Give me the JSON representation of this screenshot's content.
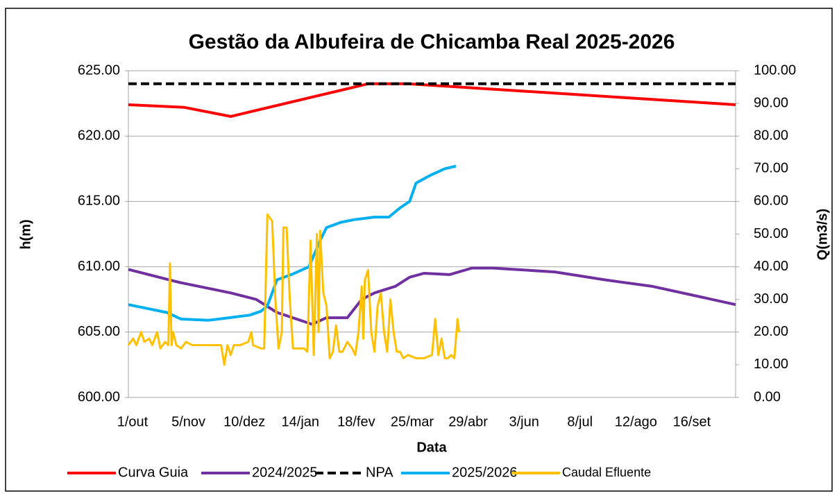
{
  "chart_data": {
    "type": "line",
    "title": "Gestão da Albufeira de Chicamba Real 2025-2026",
    "xlabel": "Data",
    "ylabel": "h(m)",
    "y2label": "Q(m3/s)",
    "xlim": [
      0,
      380
    ],
    "xticks": [
      {
        "value": 0,
        "label": "1/out"
      },
      {
        "value": 35,
        "label": "5/nov"
      },
      {
        "value": 70,
        "label": "10/dez"
      },
      {
        "value": 105,
        "label": "14/jan"
      },
      {
        "value": 140,
        "label": "18/fev"
      },
      {
        "value": 175,
        "label": "25/mar"
      },
      {
        "value": 210,
        "label": "29/abr"
      },
      {
        "value": 245,
        "label": "3/jun"
      },
      {
        "value": 280,
        "label": "8/jul"
      },
      {
        "value": 315,
        "label": "12/ago"
      },
      {
        "value": 350,
        "label": "16/set"
      }
    ],
    "ylim": [
      600,
      625
    ],
    "yticks": [
      {
        "value": 600,
        "label": "600.00"
      },
      {
        "value": 605,
        "label": "605.00"
      },
      {
        "value": 610,
        "label": "610.00"
      },
      {
        "value": 615,
        "label": "615.00"
      },
      {
        "value": 620,
        "label": "620.00"
      },
      {
        "value": 625,
        "label": "625.00"
      }
    ],
    "y2lim": [
      0,
      100
    ],
    "y2ticks": [
      {
        "value": 0,
        "label": "0.00"
      },
      {
        "value": 10,
        "label": "10.00"
      },
      {
        "value": 20,
        "label": "20.00"
      },
      {
        "value": 30,
        "label": "30.00"
      },
      {
        "value": 40,
        "label": "40.00"
      },
      {
        "value": 50,
        "label": "50.00"
      },
      {
        "value": 60,
        "label": "60.00"
      },
      {
        "value": 70,
        "label": "70.00"
      },
      {
        "value": 80,
        "label": "80.00"
      },
      {
        "value": 90,
        "label": "90.00"
      },
      {
        "value": 100,
        "label": "100.00"
      }
    ],
    "grid": true,
    "legend": "bottom",
    "series": [
      {
        "name": "Curva Guia",
        "color": "#ff0000",
        "x": [
          0,
          35,
          64,
          150,
          175,
          380
        ],
        "values": [
          622.4,
          622.2,
          621.5,
          624,
          624,
          622.4
        ]
      },
      {
        "name": "2024/2025",
        "color": "#7030a0",
        "x": [
          0,
          32,
          64,
          80,
          93,
          115,
          124,
          137,
          146,
          154,
          167,
          176,
          185,
          201,
          215,
          228,
          267,
          298,
          328,
          354,
          380
        ],
        "values": [
          609.8,
          608.8,
          608.0,
          607.5,
          606.5,
          605.6,
          606.1,
          606.1,
          607.5,
          608.0,
          608.5,
          609.2,
          609.5,
          609.4,
          609.9,
          609.9,
          609.6,
          609.0,
          608.5,
          607.8,
          607.1
        ]
      },
      {
        "name": "NPA",
        "color": "#000000",
        "dash": true,
        "x": [
          0,
          380
        ],
        "values": [
          624,
          624
        ]
      },
      {
        "name": "2025/2026",
        "color": "#00b0f0",
        "x": [
          0,
          24,
          33,
          50,
          63,
          76,
          83,
          87,
          93,
          102,
          113,
          120,
          124,
          133,
          141,
          154,
          163,
          170,
          176,
          180,
          189,
          198,
          205
        ],
        "values": [
          607.1,
          606.5,
          606.0,
          605.9,
          606.1,
          606.3,
          606.6,
          607.0,
          609.0,
          609.4,
          610.0,
          612.0,
          613.0,
          613.4,
          613.6,
          613.8,
          613.8,
          614.5,
          615.0,
          616.4,
          617.0,
          617.5,
          617.7
        ]
      },
      {
        "name": "Caudal Efluente",
        "color": "#ffc000",
        "axis": "y2",
        "x": [
          0,
          3,
          5,
          8,
          10,
          13,
          15,
          18,
          20,
          23,
          25,
          26,
          27,
          28,
          30,
          33,
          36,
          40,
          45,
          50,
          55,
          58,
          60,
          62,
          64,
          66,
          70,
          75,
          77,
          78,
          83,
          85,
          87,
          90,
          92,
          94,
          96,
          97,
          99,
          101,
          103,
          106,
          110,
          112,
          114,
          116,
          118,
          119,
          120,
          122,
          124,
          126,
          128,
          130,
          132,
          134,
          137,
          140,
          142,
          144,
          146,
          147,
          148,
          150,
          152,
          154,
          156,
          158,
          160,
          162,
          164,
          166,
          168,
          170,
          172,
          175,
          180,
          185,
          190,
          192,
          194,
          196,
          198,
          200,
          202,
          204,
          206,
          207
        ],
        "values": [
          16,
          18,
          16,
          20,
          17,
          18,
          16,
          20,
          15,
          17,
          16,
          41,
          16,
          20,
          16,
          15,
          17,
          16,
          16,
          16,
          16,
          16,
          10,
          16,
          13,
          16,
          16,
          17,
          20,
          16,
          15,
          15,
          56,
          54,
          30,
          15,
          20,
          52,
          52,
          30,
          15,
          15,
          15,
          14,
          48,
          13,
          50,
          20,
          51,
          32,
          28,
          12,
          14,
          22,
          14,
          14,
          17,
          15,
          13,
          20,
          34,
          18,
          36,
          39,
          20,
          14,
          28,
          32,
          20,
          14,
          30,
          20,
          14,
          14,
          12,
          13,
          12,
          12,
          13,
          24,
          13,
          18,
          12,
          12,
          13,
          12,
          24,
          20
        ]
      }
    ]
  }
}
